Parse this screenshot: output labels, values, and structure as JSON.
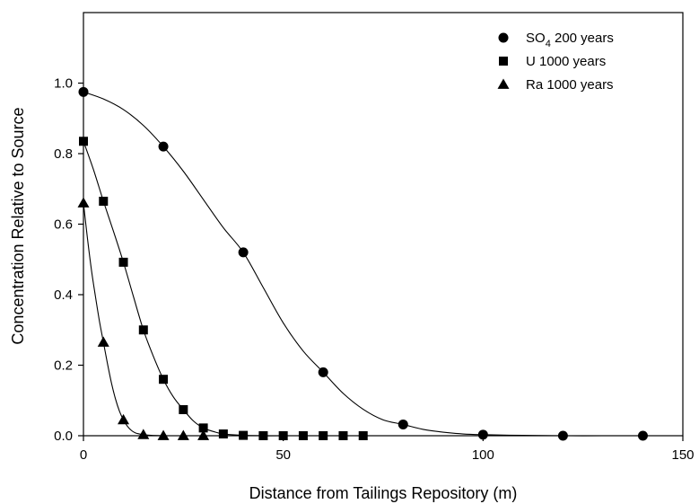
{
  "chart_data": {
    "type": "scatter",
    "xlabel": "Distance from Tailings Repository (m)",
    "ylabel": "Concentration Relative to Source",
    "xlim": [
      0,
      150
    ],
    "ylim": [
      0,
      1.2
    ],
    "x_ticks": [
      0,
      50,
      100,
      150
    ],
    "y_ticks": [
      0.0,
      0.2,
      0.4,
      0.6,
      0.8,
      1.0
    ],
    "x_tick_labels": [
      "0",
      "50",
      "100",
      "150"
    ],
    "y_tick_labels": [
      "0.0",
      "0.2",
      "0.4",
      "0.6",
      "0.8",
      "1.0"
    ],
    "grid": false,
    "legend_position": "top-right",
    "series": [
      {
        "name": "SO4 200 years",
        "name_base": "SO",
        "name_sub": "4",
        "name_rest": " 200 years",
        "marker": "circle",
        "x": [
          0,
          20,
          40,
          60,
          80,
          100,
          120,
          140
        ],
        "y": [
          0.975,
          0.82,
          0.52,
          0.18,
          0.032,
          0.003,
          0.0,
          0.0
        ],
        "curve": [
          [
            0,
            0.975
          ],
          [
            5,
            0.955
          ],
          [
            10,
            0.925
          ],
          [
            15,
            0.88
          ],
          [
            20,
            0.82
          ],
          [
            25,
            0.75
          ],
          [
            30,
            0.67
          ],
          [
            35,
            0.59
          ],
          [
            40,
            0.52
          ],
          [
            45,
            0.42
          ],
          [
            50,
            0.32
          ],
          [
            55,
            0.24
          ],
          [
            60,
            0.18
          ],
          [
            65,
            0.12
          ],
          [
            70,
            0.075
          ],
          [
            75,
            0.045
          ],
          [
            80,
            0.032
          ],
          [
            85,
            0.018
          ],
          [
            90,
            0.01
          ],
          [
            95,
            0.005
          ],
          [
            100,
            0.003
          ],
          [
            110,
            0.001
          ],
          [
            120,
            0.0
          ],
          [
            130,
            0.0
          ],
          [
            140,
            0.0
          ],
          [
            150,
            0.0
          ]
        ]
      },
      {
        "name": "U 1000 years",
        "marker": "square",
        "x": [
          0,
          5,
          10,
          15,
          20,
          25,
          30,
          35,
          40,
          45,
          50,
          55,
          60,
          65,
          70
        ],
        "y": [
          0.835,
          0.665,
          0.492,
          0.3,
          0.16,
          0.074,
          0.022,
          0.005,
          0.001,
          0.0,
          0.0,
          0.0,
          0.0,
          0.0,
          0.0
        ],
        "curve": [
          [
            0,
            0.835
          ],
          [
            2.5,
            0.755
          ],
          [
            5,
            0.665
          ],
          [
            7.5,
            0.58
          ],
          [
            10,
            0.492
          ],
          [
            12.5,
            0.395
          ],
          [
            15,
            0.3
          ],
          [
            17.5,
            0.225
          ],
          [
            20,
            0.16
          ],
          [
            22.5,
            0.11
          ],
          [
            25,
            0.074
          ],
          [
            27.5,
            0.042
          ],
          [
            30,
            0.022
          ],
          [
            32.5,
            0.012
          ],
          [
            35,
            0.005
          ],
          [
            40,
            0.001
          ],
          [
            45,
            0.0
          ],
          [
            50,
            0.0
          ],
          [
            60,
            0.0
          ],
          [
            70,
            0.0
          ]
        ]
      },
      {
        "name": "Ra 1000 years",
        "marker": "triangle",
        "x": [
          0,
          5,
          10,
          15,
          20,
          25,
          30
        ],
        "y": [
          0.66,
          0.265,
          0.045,
          0.003,
          0.0,
          0.0,
          0.0
        ],
        "curve": [
          [
            0,
            0.66
          ],
          [
            1,
            0.56
          ],
          [
            2,
            0.47
          ],
          [
            3,
            0.395
          ],
          [
            4,
            0.325
          ],
          [
            5,
            0.265
          ],
          [
            6,
            0.205
          ],
          [
            7,
            0.15
          ],
          [
            8,
            0.105
          ],
          [
            9,
            0.07
          ],
          [
            10,
            0.045
          ],
          [
            11,
            0.027
          ],
          [
            12,
            0.015
          ],
          [
            13,
            0.008
          ],
          [
            14,
            0.005
          ],
          [
            15,
            0.003
          ],
          [
            17,
            0.001
          ],
          [
            20,
            0.0
          ]
        ]
      }
    ]
  }
}
